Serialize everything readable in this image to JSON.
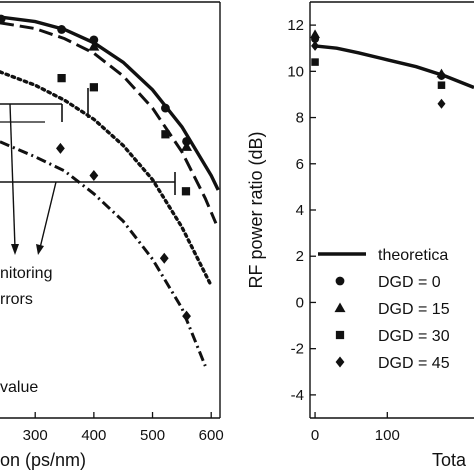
{
  "chart_data": [
    {
      "type": "line",
      "xlabel": "on (ps/nm)",
      "ylabel": "",
      "xlim": [
        240,
        615
      ],
      "ylim": [
        0,
        1
      ],
      "x_ticks": [
        300,
        400,
        500,
        600
      ],
      "tick_labels": [
        "300",
        "400",
        "500",
        "600"
      ],
      "grid": false,
      "series": [
        {
          "style": "solid",
          "x": [
            240,
            300,
            350,
            400,
            450,
            500,
            550,
            600,
            612
          ],
          "y": [
            0.964,
            0.953,
            0.934,
            0.902,
            0.855,
            0.789,
            0.7,
            0.583,
            0.548
          ]
        },
        {
          "style": "long-dash",
          "x": [
            240,
            300,
            350,
            400,
            450,
            500,
            550,
            590,
            608
          ],
          "y": [
            0.95,
            0.936,
            0.912,
            0.877,
            0.822,
            0.745,
            0.64,
            0.528,
            0.468
          ]
        },
        {
          "style": "dotted",
          "x": [
            240,
            300,
            350,
            400,
            450,
            500,
            550,
            600
          ],
          "y": [
            0.832,
            0.8,
            0.764,
            0.718,
            0.655,
            0.573,
            0.459,
            0.318
          ]
        },
        {
          "style": "dash-dot",
          "x": [
            240,
            300,
            350,
            400,
            450,
            500,
            550,
            590
          ],
          "y": [
            0.664,
            0.628,
            0.594,
            0.539,
            0.473,
            0.382,
            0.264,
            0.125
          ]
        }
      ],
      "markers": [
        {
          "marker": "circle",
          "x": [
            242,
            345,
            400,
            522,
            558
          ],
          "y": [
            0.959,
            0.934,
            0.909,
            0.745,
            0.665
          ]
        },
        {
          "marker": "triangle",
          "x": [
            400,
            558
          ],
          "y": [
            0.893,
            0.652
          ]
        },
        {
          "marker": "square",
          "x": [
            345,
            400,
            522,
            557
          ],
          "y": [
            0.817,
            0.795,
            0.682,
            0.545
          ]
        },
        {
          "marker": "diamond",
          "x": [
            343,
            400,
            520,
            558
          ],
          "y": [
            0.648,
            0.583,
            0.384,
            0.245
          ]
        }
      ],
      "annotations": [
        "nitoring",
        "rrors",
        "value"
      ]
    },
    {
      "type": "scatter",
      "xlabel": "Tota",
      "ylabel": "RF power ratio (dB)",
      "xlim": [
        -7,
        220
      ],
      "ylim": [
        -5,
        13
      ],
      "y_ticks": [
        -4,
        -2,
        0,
        2,
        4,
        6,
        8,
        10,
        12
      ],
      "y_tick_labels": [
        "-4",
        "-2",
        "0",
        "2",
        "4",
        "6",
        "8",
        "10",
        "12"
      ],
      "x_ticks": [
        0,
        100
      ],
      "x_tick_labels": [
        "0",
        "100"
      ],
      "grid": false,
      "theory_line": {
        "x": [
          0,
          30,
          60,
          100,
          140,
          180,
          220
        ],
        "y": [
          11.1,
          11.0,
          10.8,
          10.5,
          10.2,
          9.8,
          9.3
        ]
      },
      "series": [
        {
          "marker": "circle",
          "x": [
            0,
            175
          ],
          "y": [
            11.4,
            9.8
          ]
        },
        {
          "marker": "triangle",
          "x": [
            0,
            175
          ],
          "y": [
            11.6,
            9.9
          ]
        },
        {
          "marker": "square",
          "x": [
            0,
            175
          ],
          "y": [
            10.4,
            9.4
          ]
        },
        {
          "marker": "diamond",
          "x": [
            0,
            175
          ],
          "y": [
            11.1,
            8.6
          ]
        }
      ],
      "legend": {
        "position": "bottom-right",
        "entries": [
          {
            "marker": "line",
            "label": "theoretica"
          },
          {
            "marker": "circle",
            "label": "DGD = 0"
          },
          {
            "marker": "triangle",
            "label": "DGD = 15"
          },
          {
            "marker": "square",
            "label": "DGD = 30"
          },
          {
            "marker": "diamond",
            "label": "DGD = 45"
          }
        ]
      }
    }
  ]
}
